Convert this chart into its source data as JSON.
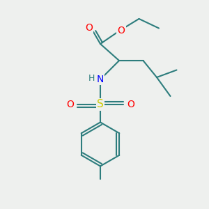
{
  "bg_color": "#eef0ee",
  "bond_color": "#2d7d7d",
  "atom_colors": {
    "O": "#ff0000",
    "N": "#0000ff",
    "S": "#cccc00",
    "H": "#2d7d7d"
  },
  "fig_size": [
    3.0,
    3.0
  ],
  "dpi": 100,
  "bond_lw": 1.5,
  "font_size": 9.5
}
